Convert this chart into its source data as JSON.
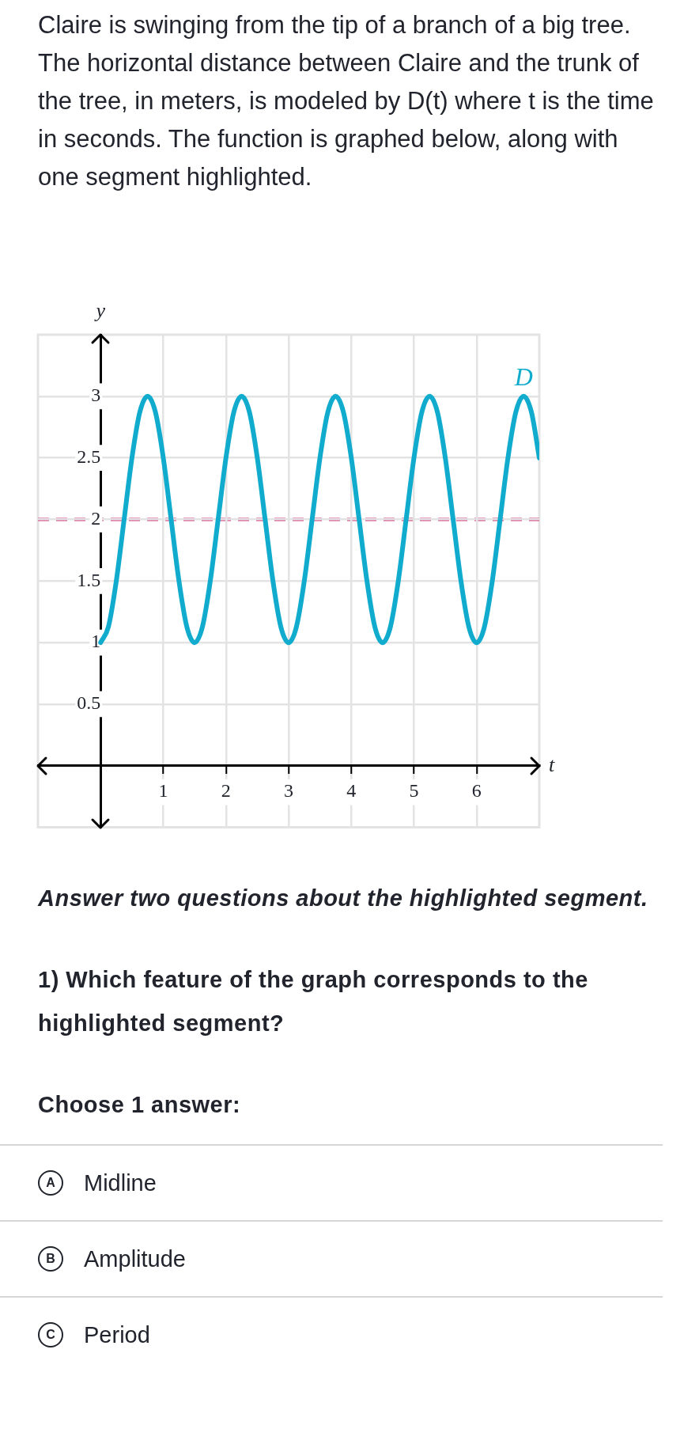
{
  "chart_data": {
    "type": "line",
    "title": "Claire is swinging from the tip of a branch of a big tree. The horizontal distance between Claire and the trunk of the tree, in meters, is modeled by D(t) where t is the time in seconds. The function is graphed below, along with one segment highlighted.",
    "xlabel": "t",
    "ylabel": "y",
    "x": [
      0,
      0.125,
      0.25,
      0.375,
      0.5,
      0.625,
      0.75,
      0.875,
      1,
      1.125,
      1.25,
      1.375,
      1.5,
      1.625,
      1.75,
      1.875,
      2,
      2.125,
      2.25,
      2.375,
      2.5,
      2.625,
      2.75,
      2.875,
      3,
      3.125,
      3.25,
      3.375,
      3.5,
      3.625,
      3.75,
      3.875,
      4,
      4.125,
      4.25,
      4.375,
      4.5,
      4.625,
      4.75,
      4.875,
      5,
      5.125,
      5.25,
      5.375,
      5.5,
      5.625,
      5.75,
      5.875,
      6,
      6.125,
      6.25,
      6.375,
      6.5,
      6.625,
      6.75,
      6.875,
      7
    ],
    "series": [
      {
        "name": "D",
        "color": "#11accd",
        "values": [
          1,
          1.13,
          1.5,
          2,
          2.5,
          2.87,
          3,
          2.87,
          2.5,
          2,
          1.5,
          1.13,
          1,
          1.13,
          1.5,
          2,
          2.5,
          2.87,
          3,
          2.87,
          2.5,
          2,
          1.5,
          1.13,
          1,
          1.13,
          1.5,
          2,
          2.5,
          2.87,
          3,
          2.87,
          2.5,
          2,
          1.5,
          1.13,
          1,
          1.13,
          1.5,
          2,
          2.5,
          2.87,
          3,
          2.87,
          2.5,
          2,
          1.5,
          1.13,
          1,
          1.13,
          1.5,
          2,
          2.5,
          2.87,
          3,
          2.87,
          2.5
        ]
      }
    ],
    "xlim": [
      -1,
      7
    ],
    "xticks": [
      1,
      2,
      3,
      4,
      5,
      6
    ],
    "ylim": [
      -0.5,
      3.5
    ],
    "yticks": [
      0.5,
      1,
      1.5,
      2,
      2.5,
      3
    ],
    "grid": true,
    "legend": false,
    "marker": "none",
    "ref_lines": [
      {
        "axis": "y",
        "value": 2,
        "color": "#d23c81",
        "line_style": "dashed"
      }
    ],
    "annotations": [
      "Answer two questions about the highlighted segment.",
      "1) Which feature of the graph corresponds to the highlighted segment?",
      "Choose 1 answer:",
      "A",
      "Midline",
      "B",
      "Amplitude",
      "C",
      "Period"
    ]
  }
}
